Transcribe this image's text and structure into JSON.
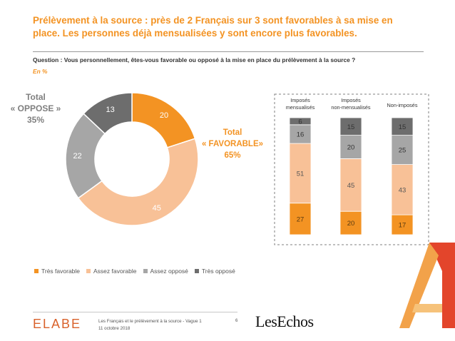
{
  "title": "Prélèvement à la source : près de 2 Français sur 3 sont favorables à sa mise en place. Les personnes déjà mensualisées y sont encore plus favorables.",
  "question": "Question : Vous personnellement, êtes-vous favorable ou opposé à la mise en place du prélèvement à la source ?",
  "unit": "En %",
  "total_oppose": {
    "line1": "Total",
    "line2": "« OPPOSE »",
    "line3": "35%"
  },
  "total_favorable": {
    "line1": "Total",
    "line2": "« FAVORABLE»",
    "line3": "65%"
  },
  "colors": {
    "tres_favorable": "#F39323",
    "assez_favorable": "#F8C197",
    "assez_oppose": "#A6A6A6",
    "tres_oppose": "#6D6D6D",
    "title": "#F39323",
    "total_oppose_text": "#7F7F7F"
  },
  "legend": [
    "Très favorable",
    "Assez favorable",
    "Assez opposé",
    "Très opposé"
  ],
  "chart_data": [
    {
      "type": "pie",
      "categories": [
        "Très favorable",
        "Assez favorable",
        "Assez opposé",
        "Très opposé"
      ],
      "values": [
        20,
        45,
        22,
        13
      ],
      "donut": true
    },
    {
      "type": "bar",
      "stacked": true,
      "categories": [
        [
          "Imposés",
          "mensualisés"
        ],
        [
          "Imposés",
          "non-mensualisés"
        ],
        [
          "Non-imposés"
        ]
      ],
      "series": [
        {
          "name": "Très favorable",
          "values": [
            27,
            20,
            17
          ]
        },
        {
          "name": "Assez favorable",
          "values": [
            51,
            45,
            43
          ]
        },
        {
          "name": "Assez opposé",
          "values": [
            16,
            20,
            25
          ]
        },
        {
          "name": "Très opposé",
          "values": [
            6,
            15,
            15
          ]
        }
      ]
    }
  ],
  "footer": {
    "brand": "ELABE",
    "line1": "Les Français et le prélèvement à la source - Vague 1",
    "line2": "11 octobre 2018",
    "page": "6",
    "partner": "LesEchos"
  }
}
